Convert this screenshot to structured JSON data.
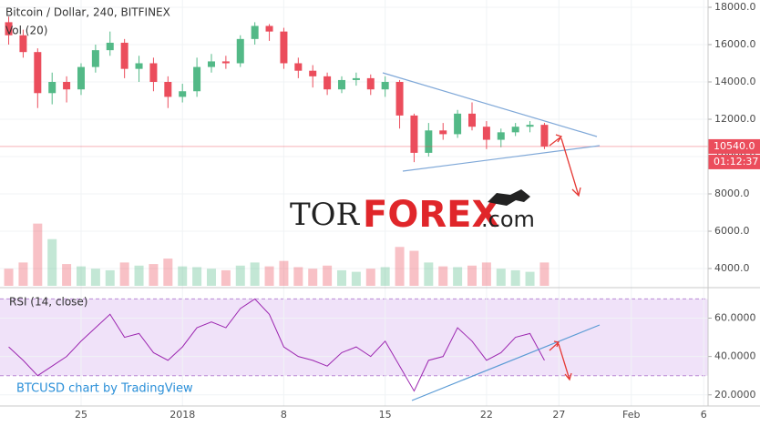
{
  "chart_data": [
    {
      "type": "candlestick",
      "title": "Bitcoin / Dollar, 240, BITFINEX",
      "volume_label": "Vol (20)",
      "x": [
        -11,
        -10,
        -9,
        -8,
        -7,
        -6,
        -5,
        -4,
        -3,
        -2,
        -1,
        0,
        1,
        2,
        3,
        4,
        5,
        6,
        7,
        8,
        9,
        10,
        11,
        12,
        13,
        14,
        15,
        16,
        17,
        18,
        19,
        20,
        21,
        22,
        23,
        24,
        25,
        26
      ],
      "open": [
        17200,
        16500,
        15600,
        13400,
        14000,
        13600,
        14800,
        15700,
        16100,
        14700,
        15000,
        14000,
        13200,
        13500,
        14800,
        15100,
        15000,
        16300,
        17000,
        16700,
        15000,
        14600,
        14300,
        13600,
        14100,
        14200,
        13600,
        14000,
        12200,
        10200,
        11400,
        11200,
        12300,
        11600,
        10900,
        11300,
        11600,
        11700
      ],
      "high": [
        17500,
        16800,
        15800,
        14500,
        14300,
        15000,
        16000,
        16700,
        16300,
        15400,
        15300,
        14300,
        13900,
        15300,
        15500,
        15400,
        16500,
        17200,
        17100,
        16900,
        15300,
        14900,
        14500,
        14300,
        14500,
        14400,
        14300,
        14100,
        12300,
        11800,
        11800,
        12500,
        12900,
        11900,
        11500,
        11800,
        11900,
        11800
      ],
      "low": [
        16000,
        15300,
        12600,
        12800,
        12900,
        13300,
        14500,
        15400,
        14200,
        14000,
        13500,
        12600,
        12900,
        13200,
        14500,
        14700,
        14800,
        16000,
        16200,
        14700,
        14200,
        13700,
        13300,
        13400,
        13800,
        13300,
        13200,
        11500,
        9700,
        10000,
        10900,
        11000,
        11400,
        10400,
        10500,
        11100,
        11300,
        10400
      ],
      "close": [
        16500,
        15600,
        13400,
        14000,
        13600,
        14800,
        15700,
        16100,
        14700,
        15000,
        14000,
        13200,
        13500,
        14800,
        15100,
        15000,
        16300,
        17000,
        16700,
        15000,
        14600,
        14300,
        13600,
        14100,
        14200,
        13600,
        14000,
        12200,
        10200,
        11400,
        11200,
        12300,
        11600,
        10900,
        11300,
        11600,
        11700,
        10540
      ],
      "volume": [
        22,
        30,
        80,
        60,
        28,
        25,
        22,
        20,
        30,
        26,
        28,
        35,
        25,
        24,
        22,
        20,
        26,
        30,
        25,
        32,
        24,
        22,
        26,
        20,
        18,
        22,
        24,
        50,
        45,
        30,
        25,
        24,
        26,
        30,
        22,
        20,
        18,
        30
      ],
      "volume_ylim": [
        0,
        110
      ],
      "up_color": "#53b987",
      "down_color": "#eb4d5c",
      "xlim": [
        -11.6,
        37.3
      ],
      "xticks": [
        {
          "value": -6,
          "label": "25"
        },
        {
          "value": 1,
          "label": "2018"
        },
        8,
        15,
        22,
        27,
        {
          "value": 32,
          "label": "Feb"
        },
        {
          "value": 37,
          "label": "6"
        }
      ],
      "ylim": [
        2976,
        18390
      ],
      "yticks": [
        {
          "value": 4000,
          "label": "4000.0"
        },
        {
          "value": 6000,
          "label": "6000.0"
        },
        {
          "value": 8000,
          "label": "8000.0"
        },
        {
          "value": 10000,
          "label": "10000.0"
        },
        {
          "value": 12000,
          "label": "12000.0"
        },
        {
          "value": 14000,
          "label": "14000.0"
        },
        {
          "value": 16000,
          "label": "16000.0"
        },
        {
          "value": 18000,
          "label": "18000.0"
        }
      ],
      "last_price": {
        "value": 10540,
        "label": "10540.0"
      },
      "countdown": "01:12:37",
      "grid": true
    },
    {
      "type": "line",
      "title": "RSI (14, close)",
      "color": "#9c27b0",
      "values": [
        45,
        38,
        30,
        35,
        40,
        48,
        55,
        62,
        50,
        52,
        42,
        38,
        45,
        55,
        58,
        55,
        65,
        70,
        62,
        45,
        40,
        38,
        35,
        42,
        45,
        40,
        48,
        35,
        22,
        38,
        40,
        55,
        48,
        38,
        42,
        50,
        52,
        38
      ],
      "ylim": [
        14.2,
        75.9
      ],
      "yticks": [
        {
          "value": 20,
          "label": "20.0000"
        },
        {
          "value": 40,
          "label": "40.0000"
        },
        {
          "value": 60,
          "label": "60.0000"
        }
      ],
      "band": [
        30,
        70
      ],
      "band_color": "#e9d5f7",
      "grid": true
    }
  ],
  "watermark": {
    "tor": "TOR",
    "forex": "FOREX",
    "com": ".com"
  },
  "credit": "BTCUSD chart by TradingView"
}
